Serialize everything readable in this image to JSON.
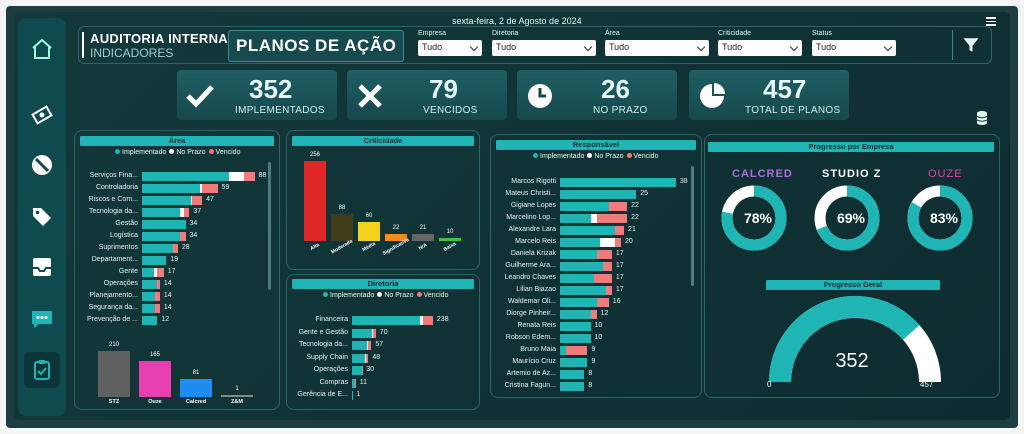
{
  "header": {
    "date": "sexta-feira, 2 de Agosto de 2024",
    "title": "AUDITORIA INTERNA",
    "subtitle": "INDICADORES",
    "page_title": "PLANOS DE AÇÃO"
  },
  "filters": [
    {
      "label": "Empresa",
      "value": "Tudo"
    },
    {
      "label": "Diretoria",
      "value": "Tudo"
    },
    {
      "label": "Área",
      "value": "Tudo"
    },
    {
      "label": "Criticidade",
      "value": "Tudo"
    },
    {
      "label": "Status",
      "value": "Tudo"
    }
  ],
  "kpis": [
    {
      "value": "352",
      "label": "IMPLEMENTADOS"
    },
    {
      "value": "79",
      "label": "VENCIDOS"
    },
    {
      "value": "26",
      "label": "NO PRAZO"
    },
    {
      "value": "457",
      "label": "TOTAL DE PLANOS"
    }
  ],
  "legend": {
    "implemented": "Implementado",
    "on_time": "No Prazo",
    "overdue": "Vencido"
  },
  "colors": {
    "implemented": "#1fb5b5",
    "on_time": "#ffffff",
    "overdue": "#f07b7b",
    "accent": "#1fb5b5"
  },
  "area": {
    "title": "Área",
    "rows": [
      {
        "cat": "Serviços Fina...",
        "impl": 68,
        "prazo": 12,
        "venc": 8,
        "total": "88"
      },
      {
        "cat": "Controladoria",
        "impl": 45,
        "prazo": 2,
        "venc": 12,
        "total": "59"
      },
      {
        "cat": "Riscos e Com...",
        "impl": 38,
        "prazo": 1,
        "venc": 8,
        "total": "47"
      },
      {
        "cat": "Tecnologia da...",
        "impl": 30,
        "prazo": 3,
        "venc": 4,
        "total": "37"
      },
      {
        "cat": "Gestão",
        "impl": 34,
        "prazo": 0,
        "venc": 0,
        "total": "34"
      },
      {
        "cat": "Logística",
        "impl": 30,
        "prazo": 0,
        "venc": 4,
        "total": "34"
      },
      {
        "cat": "Suprimentos",
        "impl": 24,
        "prazo": 0,
        "venc": 4,
        "total": "28"
      },
      {
        "cat": "Departament...",
        "impl": 19,
        "prazo": 0,
        "venc": 0,
        "total": "19"
      },
      {
        "cat": "Gente",
        "impl": 9,
        "prazo": 3,
        "venc": 5,
        "total": "17"
      },
      {
        "cat": "Operações",
        "impl": 12,
        "prazo": 0,
        "venc": 2,
        "total": "14"
      },
      {
        "cat": "Planejamento...",
        "impl": 10,
        "prazo": 0,
        "venc": 4,
        "total": "14"
      },
      {
        "cat": "Segurança da...",
        "impl": 10,
        "prazo": 0,
        "venc": 4,
        "total": "14"
      },
      {
        "cat": "Prevenção de ...",
        "impl": 12,
        "prazo": 0,
        "venc": 0,
        "total": "12"
      }
    ]
  },
  "empresa_bars": [
    {
      "cat": "STZ",
      "value": 210,
      "color": "#606060"
    },
    {
      "cat": "Ouze",
      "value": 165,
      "color": "#e83fb0"
    },
    {
      "cat": "Calcred",
      "value": 81,
      "color": "#1e8cf0"
    },
    {
      "cat": "Z&M",
      "value": 1,
      "color": "#888888"
    }
  ],
  "criticidade": {
    "title": "Criticidade",
    "bars": [
      {
        "cat": "Alta",
        "value": 256,
        "color": "#e02828"
      },
      {
        "cat": "Moderada",
        "value": 88,
        "color": "#3f3d1a"
      },
      {
        "cat": "Média",
        "value": 60,
        "color": "#f2d21b"
      },
      {
        "cat": "Significativa",
        "value": 22,
        "color": "#f28c1b"
      },
      {
        "cat": "N/A",
        "value": 21,
        "color": "#666666"
      },
      {
        "cat": "Baixa",
        "value": 10,
        "color": "#3cc83c"
      }
    ]
  },
  "diretoria": {
    "title": "Diretoria",
    "rows": [
      {
        "cat": "Financeira",
        "impl": 200,
        "prazo": 10,
        "venc": 28,
        "total": "238"
      },
      {
        "cat": "Gente e Gestão",
        "impl": 60,
        "prazo": 2,
        "venc": 8,
        "total": "70"
      },
      {
        "cat": "Tecnologia da...",
        "impl": 45,
        "prazo": 2,
        "venc": 10,
        "total": "57"
      },
      {
        "cat": "Supply Chain",
        "impl": 38,
        "prazo": 2,
        "venc": 8,
        "total": "48"
      },
      {
        "cat": "Operações",
        "impl": 28,
        "prazo": 0,
        "venc": 2,
        "total": "30"
      },
      {
        "cat": "Compras",
        "impl": 10,
        "prazo": 0,
        "venc": 1,
        "total": "11"
      },
      {
        "cat": "Gerência de E...",
        "impl": 1,
        "prazo": 0,
        "venc": 0,
        "total": "1"
      }
    ]
  },
  "responsavel": {
    "title": "Responsável",
    "rows": [
      {
        "cat": "Marcos Rigotti",
        "impl": 38,
        "prazo": 0,
        "venc": 0,
        "total": "38"
      },
      {
        "cat": "Mateus Christi...",
        "impl": 25,
        "prazo": 0,
        "venc": 0,
        "total": "25"
      },
      {
        "cat": "Gigiane Lopes",
        "impl": 16,
        "prazo": 0,
        "venc": 6,
        "total": "22"
      },
      {
        "cat": "Marcelino Lop...",
        "impl": 10,
        "prazo": 2,
        "venc": 10,
        "total": "22"
      },
      {
        "cat": "Alexandre Lara",
        "impl": 18,
        "prazo": 0,
        "venc": 3,
        "total": "21"
      },
      {
        "cat": "Marcelo Reis",
        "impl": 13,
        "prazo": 5,
        "venc": 2,
        "total": "20"
      },
      {
        "cat": "Daniela Krizak",
        "impl": 12,
        "prazo": 0,
        "venc": 5,
        "total": "17"
      },
      {
        "cat": "Guilherme Ara...",
        "impl": 14,
        "prazo": 0,
        "venc": 3,
        "total": "17"
      },
      {
        "cat": "Leandro Chaves",
        "impl": 11,
        "prazo": 0,
        "venc": 6,
        "total": "17"
      },
      {
        "cat": "Lilian Biazao",
        "impl": 15,
        "prazo": 0,
        "venc": 2,
        "total": "17"
      },
      {
        "cat": "Waldemar Oli...",
        "impl": 12,
        "prazo": 0,
        "venc": 4,
        "total": "16"
      },
      {
        "cat": "Diorge Pinheir...",
        "impl": 10,
        "prazo": 0,
        "venc": 2,
        "total": "12"
      },
      {
        "cat": "Renata Reis",
        "impl": 10,
        "prazo": 0,
        "venc": 0,
        "total": "10"
      },
      {
        "cat": "Robson Edem...",
        "impl": 10,
        "prazo": 0,
        "venc": 0,
        "total": "10"
      },
      {
        "cat": "Bruno Maia",
        "impl": 2,
        "prazo": 0,
        "venc": 7,
        "total": "9"
      },
      {
        "cat": "Maurício Cruz",
        "impl": 9,
        "prazo": 0,
        "venc": 0,
        "total": "9"
      },
      {
        "cat": "Artemio de Az...",
        "impl": 8,
        "prazo": 0,
        "venc": 0,
        "total": "8"
      },
      {
        "cat": "Cristina Fagun...",
        "impl": 8,
        "prazo": 0,
        "venc": 0,
        "total": "8"
      }
    ]
  },
  "progresso_empresa": {
    "title": "Progresso por Empresa",
    "items": [
      {
        "logo": "CALCRED",
        "pct": 78,
        "label": "78%",
        "color": "#b06ae0"
      },
      {
        "logo": "STUDIO Z",
        "pct": 69,
        "label": "69%",
        "color": "#ffffff"
      },
      {
        "logo": "OUZE",
        "pct": 83,
        "label": "83%",
        "color": "#e83fb0"
      }
    ]
  },
  "progresso_geral": {
    "title": "Progresso Geral",
    "value": 352,
    "min": 0,
    "max": 457,
    "value_label": "352",
    "min_label": "0",
    "max_label": "457"
  }
}
